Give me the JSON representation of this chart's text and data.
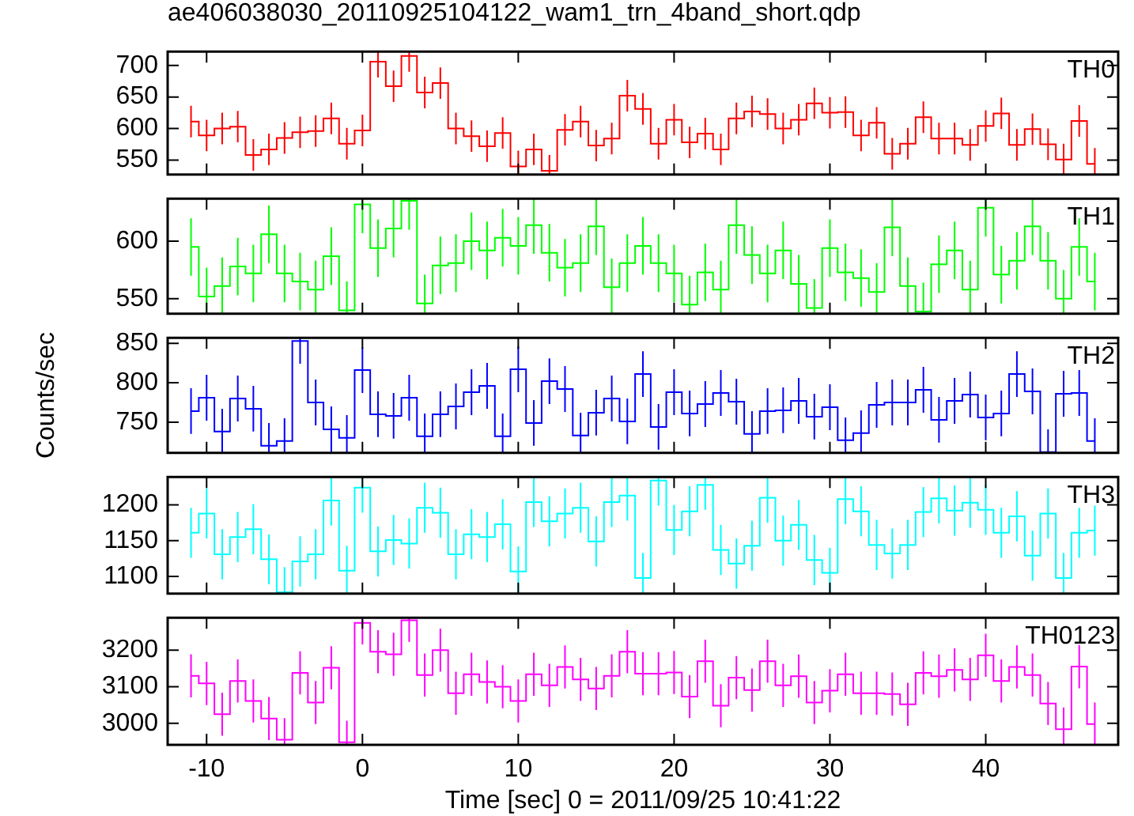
{
  "chart_data": [
    {
      "type": "step",
      "title": "ae406038030_20110925104122_wam1_trn_4band_short.qdp",
      "tick_labels": "y",
      "x": [
        -11,
        -10,
        -9,
        -8,
        -7,
        -6,
        -5,
        -4,
        -3,
        -2,
        -1,
        0,
        1,
        2,
        3,
        4,
        5,
        6,
        7,
        8,
        9,
        10,
        11,
        12,
        13,
        14,
        15,
        16,
        17,
        18,
        19,
        20,
        21,
        22,
        23,
        24,
        25,
        26,
        27,
        28,
        29,
        30,
        31,
        32,
        33,
        34,
        35,
        36,
        37,
        38,
        39,
        40,
        41,
        42,
        43,
        44,
        45,
        46,
        47
      ],
      "xlim": [
        -12.5,
        48.5
      ],
      "xticks": [
        -10,
        0,
        10,
        20,
        30,
        40
      ],
      "ylim": [
        527,
        722
      ],
      "yticks": [
        550,
        600,
        650,
        700
      ],
      "series": [
        {
          "name": "TH0",
          "color": "#ff0000",
          "values": [
            611,
            589,
            600,
            603,
            558,
            567,
            585,
            594,
            596,
            616,
            576,
            597,
            706,
            667,
            715,
            657,
            672,
            600,
            588,
            572,
            593,
            540,
            567,
            533,
            598,
            611,
            573,
            584,
            652,
            631,
            576,
            614,
            578,
            592,
            567,
            616,
            627,
            623,
            600,
            614,
            640,
            625,
            626,
            589,
            609,
            560,
            576,
            618,
            584,
            584,
            574,
            604,
            624,
            574,
            599,
            575,
            551,
            612,
            544
          ],
          "errors": [
            25,
            25,
            25,
            25,
            25,
            25,
            25,
            25,
            25,
            25,
            25,
            25,
            25,
            25,
            25,
            25,
            25,
            25,
            25,
            25,
            25,
            25,
            25,
            25,
            25,
            25,
            25,
            25,
            25,
            25,
            25,
            25,
            25,
            25,
            25,
            25,
            25,
            25,
            25,
            25,
            25,
            25,
            25,
            25,
            25,
            25,
            25,
            25,
            25,
            25,
            25,
            25,
            25,
            25,
            25,
            25,
            25,
            25,
            25
          ]
        }
      ]
    },
    {
      "type": "step",
      "tick_labels": "y",
      "x": [
        -11,
        -10,
        -9,
        -8,
        -7,
        -6,
        -5,
        -4,
        -3,
        -2,
        -1,
        0,
        1,
        2,
        3,
        4,
        5,
        6,
        7,
        8,
        9,
        10,
        11,
        12,
        13,
        14,
        15,
        16,
        17,
        18,
        19,
        20,
        21,
        22,
        23,
        24,
        25,
        26,
        27,
        28,
        29,
        30,
        31,
        32,
        33,
        34,
        35,
        36,
        37,
        38,
        39,
        40,
        41,
        42,
        43,
        44,
        45,
        46,
        47
      ],
      "xlim": [
        -12.5,
        48.5
      ],
      "xticks": [
        -10,
        0,
        10,
        20,
        30,
        40
      ],
      "ylim": [
        537,
        637
      ],
      "yticks": [
        550,
        600
      ],
      "series": [
        {
          "name": "TH1",
          "color": "#00ff00",
          "values": [
            595,
            552,
            561,
            578,
            572,
            606,
            572,
            565,
            558,
            587,
            540,
            632,
            594,
            611,
            635,
            546,
            579,
            581,
            600,
            592,
            603,
            596,
            614,
            590,
            577,
            581,
            613,
            560,
            581,
            596,
            581,
            572,
            545,
            573,
            558,
            614,
            588,
            572,
            592,
            563,
            542,
            594,
            573,
            568,
            556,
            612,
            561,
            539,
            580,
            592,
            558,
            629,
            571,
            583,
            613,
            583,
            550,
            595,
            565
          ],
          "errors": [
            25,
            25,
            25,
            25,
            25,
            25,
            25,
            25,
            25,
            25,
            25,
            25,
            25,
            25,
            25,
            25,
            25,
            25,
            25,
            25,
            25,
            25,
            25,
            25,
            25,
            25,
            25,
            25,
            25,
            25,
            25,
            25,
            25,
            25,
            25,
            25,
            25,
            25,
            25,
            25,
            25,
            25,
            25,
            25,
            25,
            25,
            25,
            25,
            25,
            25,
            25,
            25,
            25,
            25,
            25,
            25,
            25,
            25,
            25
          ]
        }
      ]
    },
    {
      "type": "step",
      "ylabel": "Counts/sec",
      "tick_labels": "y",
      "x": [
        -11,
        -10,
        -9,
        -8,
        -7,
        -6,
        -5,
        -4,
        -3,
        -2,
        -1,
        0,
        1,
        2,
        3,
        4,
        5,
        6,
        7,
        8,
        9,
        10,
        11,
        12,
        13,
        14,
        15,
        16,
        17,
        18,
        19,
        20,
        21,
        22,
        23,
        24,
        25,
        26,
        27,
        28,
        29,
        30,
        31,
        32,
        33,
        34,
        35,
        36,
        37,
        38,
        39,
        40,
        41,
        42,
        43,
        44,
        45,
        46,
        47
      ],
      "xlim": [
        -12.5,
        48.5
      ],
      "xticks": [
        -10,
        0,
        10,
        20,
        30,
        40
      ],
      "ylim": [
        711,
        857
      ],
      "yticks": [
        750,
        800,
        850
      ],
      "series": [
        {
          "name": "TH2",
          "color": "#0000ff",
          "values": [
            764,
            781,
            738,
            780,
            767,
            720,
            726,
            853,
            775,
            741,
            730,
            816,
            760,
            758,
            781,
            732,
            760,
            770,
            788,
            796,
            732,
            817,
            749,
            802,
            792,
            733,
            762,
            780,
            751,
            811,
            744,
            788,
            761,
            773,
            787,
            776,
            735,
            764,
            765,
            777,
            757,
            769,
            727,
            736,
            772,
            775,
            775,
            791,
            753,
            777,
            785,
            756,
            761,
            811,
            789,
            712,
            786,
            787,
            726
          ],
          "errors": [
            29,
            29,
            29,
            29,
            29,
            29,
            29,
            29,
            29,
            29,
            29,
            29,
            29,
            29,
            29,
            29,
            29,
            29,
            29,
            29,
            29,
            29,
            29,
            29,
            29,
            29,
            29,
            29,
            29,
            29,
            29,
            29,
            29,
            29,
            29,
            29,
            29,
            29,
            29,
            29,
            29,
            29,
            29,
            29,
            29,
            29,
            29,
            29,
            29,
            29,
            29,
            29,
            29,
            29,
            29,
            29,
            29,
            29,
            29
          ]
        }
      ]
    },
    {
      "type": "step",
      "tick_labels": "y",
      "x": [
        -11,
        -10,
        -9,
        -8,
        -7,
        -6,
        -5,
        -4,
        -3,
        -2,
        -1,
        0,
        1,
        2,
        3,
        4,
        5,
        6,
        7,
        8,
        9,
        10,
        11,
        12,
        13,
        14,
        15,
        16,
        17,
        18,
        19,
        20,
        21,
        22,
        23,
        24,
        25,
        26,
        27,
        28,
        29,
        30,
        31,
        32,
        33,
        34,
        35,
        36,
        37,
        38,
        39,
        40,
        41,
        42,
        43,
        44,
        45,
        46,
        47
      ],
      "xlim": [
        -12.5,
        48.5
      ],
      "xticks": [
        -10,
        0,
        10,
        20,
        30,
        40
      ],
      "ylim": [
        1076,
        1239
      ],
      "yticks": [
        1100,
        1150,
        1200
      ],
      "series": [
        {
          "name": "TH3",
          "color": "#00ffff",
          "values": [
            1161,
            1188,
            1131,
            1155,
            1166,
            1124,
            1078,
            1121,
            1131,
            1206,
            1108,
            1224,
            1135,
            1151,
            1146,
            1196,
            1189,
            1131,
            1159,
            1155,
            1173,
            1107,
            1204,
            1177,
            1188,
            1196,
            1149,
            1204,
            1213,
            1098,
            1234,
            1165,
            1191,
            1228,
            1137,
            1118,
            1143,
            1210,
            1150,
            1172,
            1123,
            1105,
            1208,
            1191,
            1144,
            1132,
            1144,
            1190,
            1209,
            1192,
            1203,
            1193,
            1161,
            1184,
            1129,
            1188,
            1098,
            1161,
            1164
          ],
          "errors": [
            35,
            35,
            35,
            35,
            35,
            35,
            35,
            35,
            35,
            35,
            35,
            35,
            35,
            35,
            35,
            35,
            35,
            35,
            35,
            35,
            35,
            35,
            35,
            35,
            35,
            35,
            35,
            35,
            35,
            35,
            35,
            35,
            35,
            35,
            35,
            35,
            35,
            35,
            35,
            35,
            35,
            35,
            35,
            35,
            35,
            35,
            35,
            35,
            35,
            35,
            35,
            35,
            35,
            35,
            35,
            35,
            35,
            35,
            35
          ]
        }
      ]
    },
    {
      "type": "step",
      "xlabel": "Time [sec] 0 = 2011/09/25 10:41:22",
      "x": [
        -11,
        -10,
        -9,
        -8,
        -7,
        -6,
        -5,
        -4,
        -3,
        -2,
        -1,
        0,
        1,
        2,
        3,
        4,
        5,
        6,
        7,
        8,
        9,
        10,
        11,
        12,
        13,
        14,
        15,
        16,
        17,
        18,
        19,
        20,
        21,
        22,
        23,
        24,
        25,
        26,
        27,
        28,
        29,
        30,
        31,
        32,
        33,
        34,
        35,
        36,
        37,
        38,
        39,
        40,
        41,
        42,
        43,
        44,
        45,
        46,
        47
      ],
      "xlim": [
        -12.5,
        48.5
      ],
      "xticks": [
        -10,
        0,
        10,
        20,
        30,
        40
      ],
      "ylim": [
        2941,
        3289
      ],
      "yticks": [
        3000,
        3100,
        3200
      ],
      "series": [
        {
          "name": "TH0123",
          "color": "#ff00ff",
          "values": [
            3130,
            3109,
            3025,
            3116,
            3061,
            3013,
            2955,
            3138,
            3057,
            3152,
            2948,
            3275,
            3196,
            3189,
            3282,
            3132,
            3200,
            3082,
            3134,
            3113,
            3100,
            3061,
            3134,
            3104,
            3154,
            3120,
            3095,
            3130,
            3196,
            3136,
            3136,
            3139,
            3073,
            3170,
            3048,
            3125,
            3091,
            3170,
            3104,
            3129,
            3057,
            3089,
            3134,
            3082,
            3082,
            3080,
            3052,
            3138,
            3129,
            3146,
            3120,
            3186,
            3116,
            3154,
            3132,
            3054,
            2984,
            3155,
            2998
          ],
          "errors": [
            59,
            59,
            59,
            59,
            59,
            59,
            59,
            59,
            59,
            59,
            59,
            59,
            59,
            59,
            59,
            59,
            59,
            59,
            59,
            59,
            59,
            59,
            59,
            59,
            59,
            59,
            59,
            59,
            59,
            59,
            59,
            59,
            59,
            59,
            59,
            59,
            59,
            59,
            59,
            59,
            59,
            59,
            59,
            59,
            59,
            59,
            59,
            59,
            59,
            59,
            59,
            59,
            59,
            59,
            59,
            59,
            59,
            59,
            59
          ]
        }
      ]
    }
  ]
}
